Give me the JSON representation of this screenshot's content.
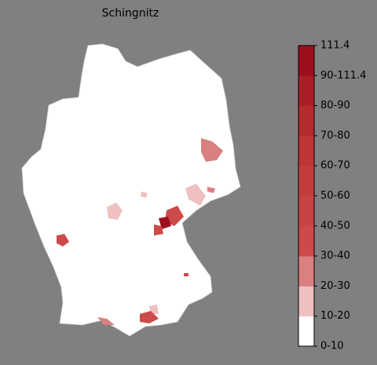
{
  "title": "Schingnitz",
  "colorbar": {
    "labels": [
      "0-10",
      "10-20",
      "20-30",
      "30-40",
      "40-50",
      "50-60",
      "60-70",
      "70-80",
      "80-90",
      "90-111.4",
      "111.4"
    ],
    "colors": [
      "#ffffff",
      "#efc0c0",
      "#da8080",
      "#cd4a4a",
      "#c84444",
      "#c33d3d",
      "#bd3535",
      "#b52b2d",
      "#ab1e25",
      "#9e0d1d"
    ]
  }
}
